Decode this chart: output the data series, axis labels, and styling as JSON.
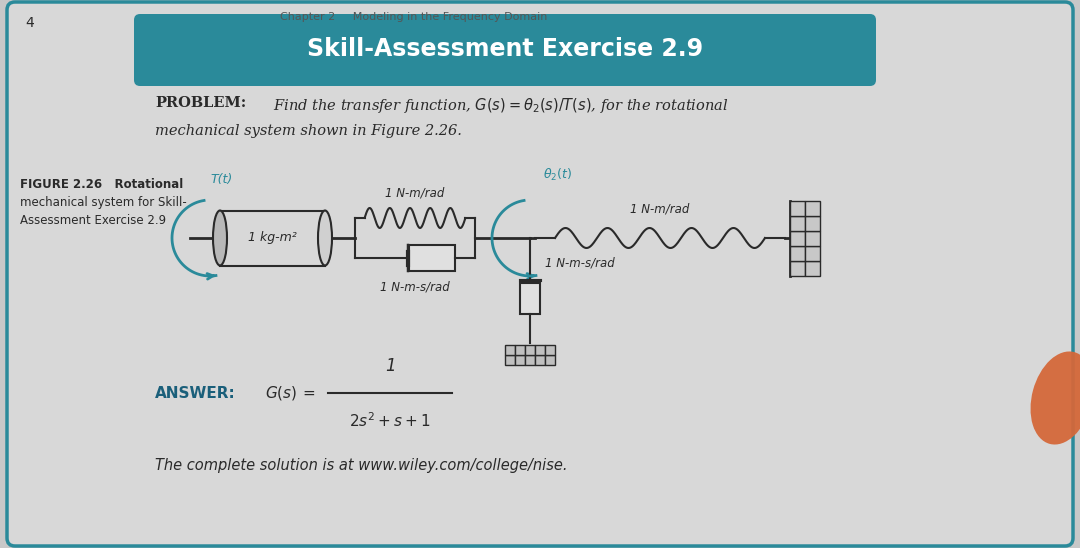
{
  "title": "Skill-Assessment Exercise 2.9",
  "title_bg_color": "#2e7d8c",
  "bg_color": "#c8c8c8",
  "content_bg_color": "#d8d8d8",
  "dark_color": "#2a2a2a",
  "teal_color": "#2a8a9a",
  "answer_color": "#1a5f7a",
  "orange_color": "#d4683a",
  "label_T": "T(t)",
  "label_theta2": "\\theta_2(t)",
  "label_spring1": "1 N-m/rad",
  "label_spring2": "1 N-m/rad",
  "label_damper1": "1 N-m-s/rad",
  "label_damper2": "1 N-m-s/rad",
  "label_inertia": "1 kg-m²",
  "figure_label_line1": "FIGURE 2.26   Rotational",
  "figure_label_line2": "mechanical system for Skill-",
  "figure_label_line3": "Assessment Exercise 2.9",
  "answer_label": "ANSWER:",
  "complete_solution": "The complete solution is at www.wiley.com/college/nise."
}
